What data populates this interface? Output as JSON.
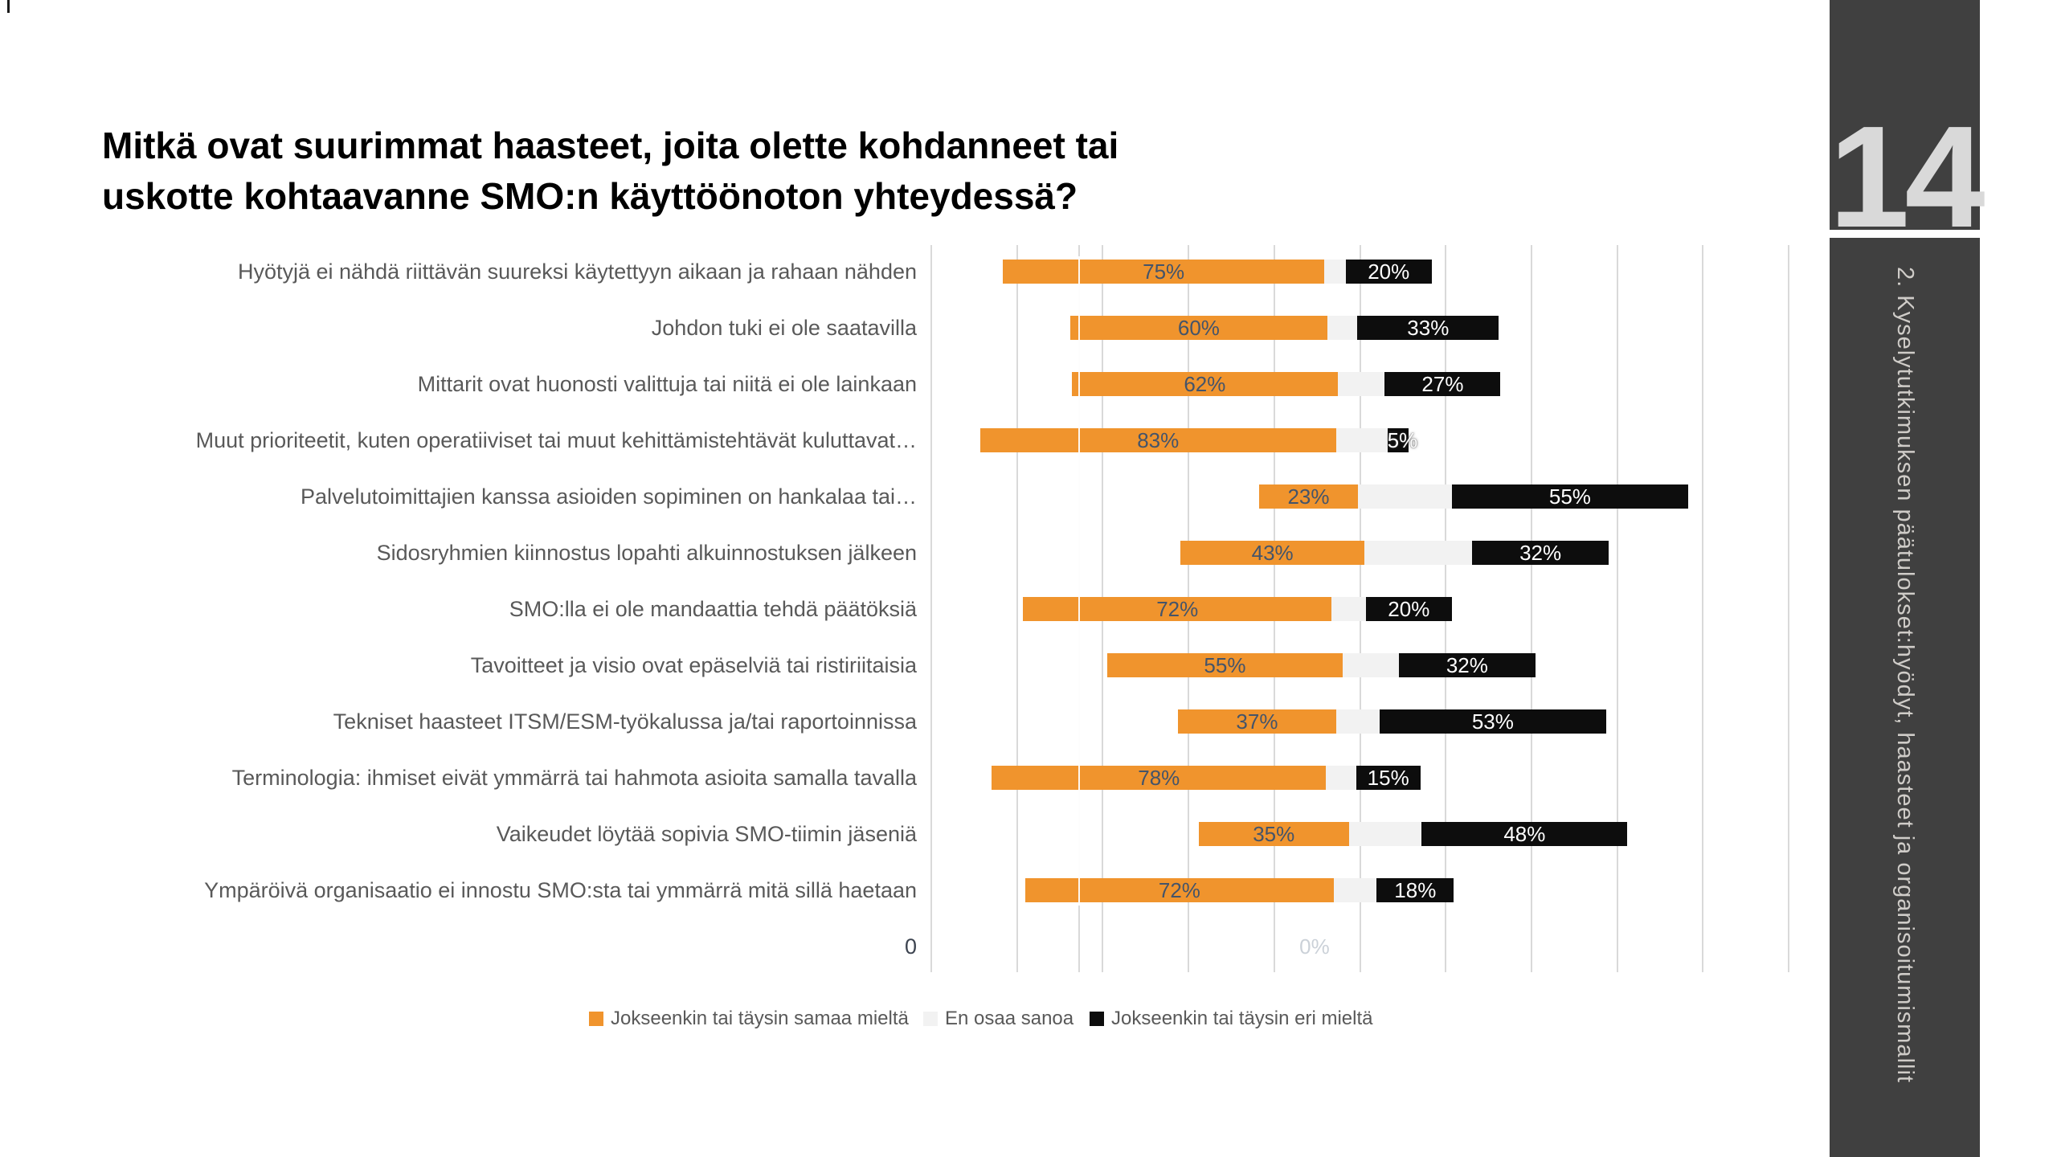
{
  "slide": {
    "title_lines": [
      "Mitkä ovat suurimmat haasteet, joita olette kohdanneet tai",
      "uskotte kohtaavanne SMO:n käyttöönoton yhteydessä?"
    ],
    "page_number": "14",
    "section_label": "2. Kyselytutkimuksen päätulokset:hyödyt, haasteet ja organisoitumismallit"
  },
  "chart_data": {
    "type": "bar",
    "orientation": "horizontal",
    "stacked": true,
    "title": "",
    "xlabel": "",
    "ylabel": "",
    "grid": true,
    "legend_position": "bottom",
    "categories": [
      "Hyötyjä ei nähdä riittävän suureksi käytettyyn aikaan ja rahaan nähden",
      "Johdon tuki ei ole saatavilla",
      "Mittarit ovat huonosti valittuja tai niitä ei ole lainkaan",
      "Muut prioriteetit, kuten operatiiviset tai muut kehittämistehtävät kuluttavat…",
      "Palvelutoimittajien kanssa asioiden sopiminen on hankalaa tai…",
      "Sidosryhmien kiinnostus lopahti alkuinnostuksen jälkeen",
      "SMO:lla ei ole mandaattia tehdä päätöksiä",
      "Tavoitteet ja visio ovat epäselviä tai ristiriitaisia",
      "Tekniset haasteet ITSM/ESM-työkalussa ja/tai raportoinnissa",
      "Terminologia: ihmiset eivät ymmärrä tai hahmota asioita samalla tavalla",
      "Vaikeudet löytää sopivia SMO-tiimin jäseniä",
      "Ympäröivä organisaatio ei innostu SMO:sta tai ymmärrä mitä sillä haetaan"
    ],
    "series": [
      {
        "name": "Jokseenkin tai täysin samaa mieltä",
        "color": "#F0942D",
        "values": [
          75,
          60,
          62,
          83,
          23,
          43,
          72,
          55,
          37,
          78,
          35,
          72
        ],
        "labels_shown": true
      },
      {
        "name": "En osaa sanoa",
        "color": "#F2F2F2",
        "values": [
          5,
          7,
          11,
          12,
          22,
          25,
          8,
          13,
          10,
          7,
          17,
          10
        ],
        "labels_shown": false
      },
      {
        "name": "Jokseenkin tai täysin eri mieltä",
        "color": "#0D0D0D",
        "values": [
          20,
          33,
          27,
          5,
          55,
          32,
          20,
          32,
          53,
          15,
          48,
          18
        ],
        "labels_shown": true
      }
    ],
    "bar_offsets_units": [
      16.7,
      32.4,
      32.8,
      11.4,
      76.5,
      58.1,
      21.4,
      41.0,
      57.5,
      14.1,
      62.4,
      21.9
    ],
    "axis": {
      "range_units": 200,
      "gridline_step_units": 20,
      "extra_axis_line_units": 34.5,
      "extra_category_label": "0",
      "zero_tick_label": "0%",
      "zero_tick_units": 89.4
    }
  },
  "colors": {
    "gridline": "#D9D9D9",
    "category_text": "#595959",
    "agree_label_text": "#44546A",
    "disagree_label_text": "#FFFFFF",
    "zero_tick_text": "#CBD1D8",
    "sidebar_background": "#404040",
    "sidebar_text": "#CFCCC8",
    "page_number_text": "#D9D9D9"
  }
}
